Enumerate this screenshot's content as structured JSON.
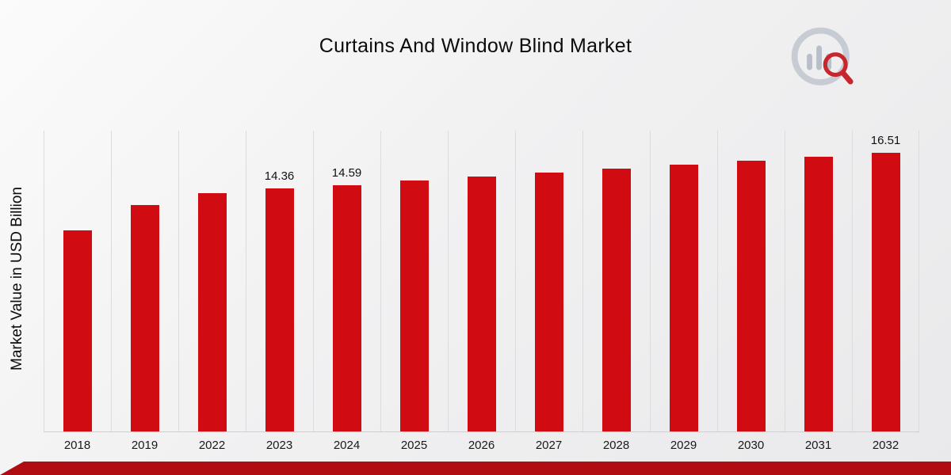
{
  "title": "Curtains And Window Blind Market",
  "ylabel": "Market Value in USD Billion",
  "colors": {
    "bar": "#d00b11",
    "footer": "#b00d12",
    "grid": "#dcdcdc"
  },
  "logo": {
    "name": "market-research-logo"
  },
  "chart_data": {
    "type": "bar",
    "title": "Curtains And Window Blind Market",
    "xlabel": "",
    "ylabel": "Market Value in USD Billion",
    "categories": [
      "2018",
      "2019",
      "2022",
      "2023",
      "2024",
      "2025",
      "2026",
      "2027",
      "2028",
      "2029",
      "2030",
      "2031",
      "2032"
    ],
    "values": [
      11.92,
      13.42,
      14.08,
      14.36,
      14.59,
      14.83,
      15.07,
      15.31,
      15.55,
      15.79,
      16.03,
      16.27,
      16.51
    ],
    "bar_labels": [
      "",
      "",
      "",
      "14.36",
      "14.59",
      "",
      "",
      "",
      "",
      "",
      "",
      "",
      "16.51"
    ],
    "ylim": [
      0,
      17.8
    ],
    "grid": "vertical",
    "legend_position": "none"
  }
}
